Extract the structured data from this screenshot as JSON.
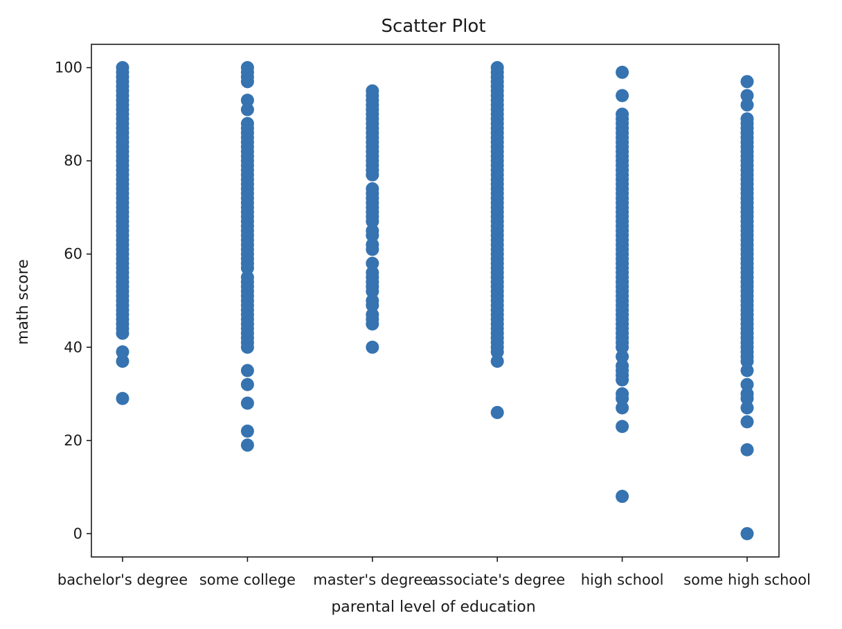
{
  "chart_data": {
    "type": "scatter",
    "title": "Scatter Plot",
    "xlabel": "parental level of education",
    "ylabel": "math score",
    "categories": [
      "bachelor's degree",
      "some college",
      "master's degree",
      "associate's degree",
      "high school",
      "some high school"
    ],
    "ylim": [
      -5,
      105
    ],
    "yticks": [
      0,
      20,
      40,
      60,
      80,
      100
    ],
    "grid": false,
    "legend": "none",
    "marker_color": "#3673b0",
    "series": [
      {
        "category": "bachelor's degree",
        "values": [
          29,
          37,
          39,
          43,
          44,
          45,
          46,
          47,
          48,
          49,
          50,
          51,
          52,
          53,
          54,
          55,
          56,
          57,
          58,
          59,
          60,
          61,
          62,
          63,
          64,
          65,
          66,
          67,
          68,
          69,
          70,
          71,
          72,
          73,
          74,
          75,
          76,
          77,
          78,
          79,
          80,
          81,
          82,
          83,
          84,
          85,
          86,
          87,
          88,
          89,
          90,
          91,
          92,
          93,
          94,
          95,
          96,
          97,
          98,
          99,
          100
        ]
      },
      {
        "category": "some college",
        "values": [
          19,
          22,
          28,
          32,
          35,
          40,
          41,
          42,
          43,
          44,
          45,
          46,
          47,
          48,
          49,
          50,
          51,
          52,
          53,
          54,
          55,
          57,
          58,
          59,
          60,
          61,
          62,
          63,
          64,
          65,
          66,
          67,
          68,
          69,
          70,
          71,
          72,
          73,
          74,
          75,
          76,
          77,
          78,
          79,
          80,
          81,
          82,
          83,
          84,
          85,
          86,
          87,
          88,
          91,
          93,
          97,
          98,
          99,
          100
        ]
      },
      {
        "category": "master's degree",
        "values": [
          40,
          45,
          46,
          47,
          49,
          50,
          52,
          53,
          54,
          55,
          56,
          58,
          61,
          62,
          64,
          65,
          67,
          68,
          69,
          70,
          71,
          72,
          73,
          74,
          77,
          78,
          79,
          80,
          81,
          82,
          83,
          84,
          85,
          86,
          87,
          88,
          89,
          90,
          91,
          92,
          93,
          94,
          95
        ]
      },
      {
        "category": "associate's degree",
        "values": [
          26,
          37,
          39,
          40,
          41,
          42,
          43,
          44,
          45,
          46,
          47,
          48,
          49,
          50,
          51,
          52,
          53,
          54,
          55,
          56,
          57,
          58,
          59,
          60,
          61,
          62,
          63,
          64,
          65,
          66,
          67,
          68,
          69,
          70,
          71,
          72,
          73,
          74,
          75,
          76,
          77,
          78,
          79,
          80,
          81,
          82,
          83,
          84,
          85,
          86,
          87,
          88,
          89,
          90,
          91,
          92,
          93,
          94,
          95,
          96,
          97,
          98,
          99,
          100
        ]
      },
      {
        "category": "high school",
        "values": [
          8,
          23,
          27,
          29,
          30,
          33,
          34,
          35,
          36,
          38,
          40,
          41,
          42,
          43,
          44,
          45,
          46,
          47,
          48,
          49,
          50,
          51,
          52,
          53,
          54,
          55,
          56,
          57,
          58,
          59,
          60,
          61,
          62,
          63,
          64,
          65,
          66,
          67,
          68,
          69,
          70,
          71,
          72,
          73,
          74,
          75,
          76,
          77,
          78,
          79,
          80,
          81,
          82,
          83,
          84,
          85,
          86,
          87,
          88,
          89,
          90,
          94,
          99
        ]
      },
      {
        "category": "some high school",
        "values": [
          0,
          18,
          24,
          27,
          29,
          30,
          32,
          35,
          37,
          38,
          39,
          40,
          41,
          42,
          43,
          44,
          45,
          46,
          47,
          48,
          49,
          50,
          51,
          52,
          53,
          54,
          55,
          56,
          57,
          58,
          59,
          60,
          61,
          62,
          63,
          64,
          65,
          66,
          67,
          68,
          69,
          70,
          71,
          72,
          73,
          74,
          75,
          76,
          77,
          78,
          79,
          80,
          81,
          82,
          83,
          84,
          85,
          86,
          87,
          88,
          89,
          92,
          94,
          97
        ]
      }
    ]
  }
}
